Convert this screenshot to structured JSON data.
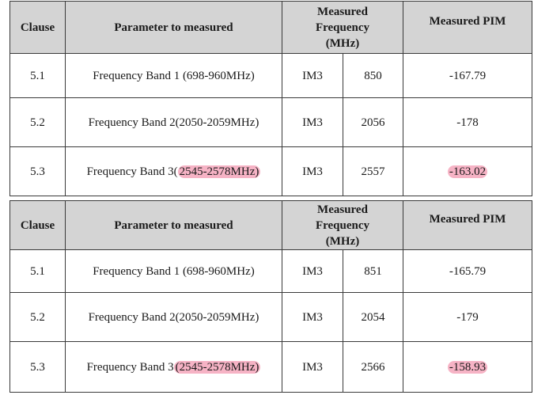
{
  "tables": [
    {
      "header": {
        "clause": "Clause",
        "parameter": "Parameter to measured",
        "frequency_line1": "Measured",
        "frequency_line2": "Frequency",
        "frequency_line3": "(MHz)",
        "pim": "Measured PIM"
      },
      "rows": [
        {
          "clause": "5.1",
          "param_main": "Frequency Band 1 (698-960MHz)",
          "param_hl": "",
          "product": "IM3",
          "frequency": "850",
          "pim": "-167.79"
        },
        {
          "clause": "5.2",
          "param_main": "Frequency Band 2(2050-2059MHz)",
          "param_hl": "",
          "product": "IM3",
          "frequency": "2056",
          "pim": "-178"
        },
        {
          "clause": "5.3",
          "param_main": "Frequency Band 3(",
          "param_hl": "2545-2578MHz)",
          "product": "IM3",
          "frequency": "2557",
          "pim": "-163.02"
        }
      ]
    },
    {
      "header": {
        "clause": "Clause",
        "parameter": "Parameter to measured",
        "frequency_line1": "Measured",
        "frequency_line2": "Frequency",
        "frequency_line3": "(MHz)",
        "pim": "Measured PIM"
      },
      "rows": [
        {
          "clause": "5.1",
          "param_main": "Frequency Band 1 (698-960MHz)",
          "param_hl": "",
          "product": "IM3",
          "frequency": "851",
          "pim": "-165.79"
        },
        {
          "clause": "5.2",
          "param_main": "Frequency Band 2(2050-2059MHz)",
          "param_hl": "",
          "product": "IM3",
          "frequency": "2054",
          "pim": "-179"
        },
        {
          "clause": "5.3",
          "param_main": "Frequency Band 3",
          "param_hl": "(2545-2578MHz)",
          "product": "IM3",
          "frequency": "2566",
          "pim": "-158.93"
        }
      ]
    }
  ],
  "colors": {
    "header_bg": "#d4d4d4",
    "highlight": "#f6b3c5",
    "border": "#3a3a3a"
  }
}
